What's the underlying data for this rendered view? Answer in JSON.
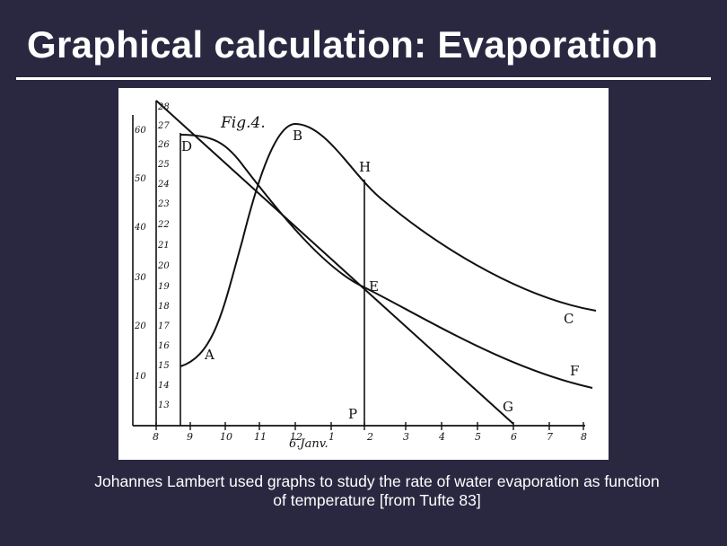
{
  "slide": {
    "title": "Graphical calculation: Evaporation",
    "caption_line1": "Johannes Lambert used graphs to study the rate of water evaporation as function",
    "caption_line2": "of temperature [from Tufte 83]"
  },
  "figure": {
    "fig_label": "Fig.4.",
    "x_axis_label": "6.Janv.",
    "x_ticks": [
      "8",
      "9",
      "10",
      "11",
      "12",
      "1",
      "2",
      "3",
      "4",
      "5",
      "6",
      "7",
      "8"
    ],
    "outer_y_ticks": [
      "60",
      "50",
      "40",
      "30",
      "20",
      "10"
    ],
    "inner_y_ticks": [
      "28",
      "27",
      "26",
      "25",
      "24",
      "23",
      "22",
      "21",
      "20",
      "19",
      "18",
      "17",
      "16",
      "15",
      "14",
      "13"
    ],
    "point_labels": {
      "A": "A",
      "B": "B",
      "C": "C",
      "D": "D",
      "E": "E",
      "F": "F",
      "G": "G",
      "H": "H",
      "P": "P"
    },
    "ink_color": "#111111"
  }
}
